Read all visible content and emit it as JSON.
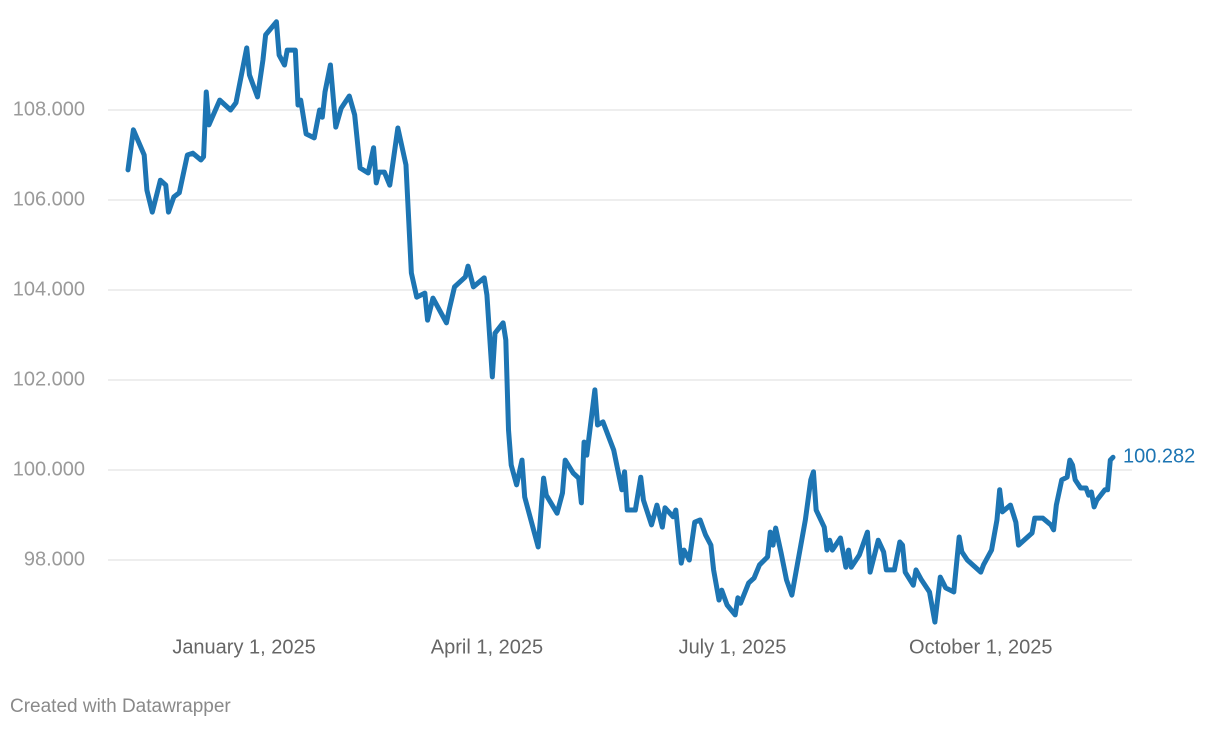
{
  "chart_data": {
    "type": "line",
    "color": "#1d75b3",
    "grid": true,
    "credit": "Created with Datawrapper",
    "x": [
      "2024-11-19",
      "2024-11-21",
      "2024-11-25",
      "2024-11-26",
      "2024-11-28",
      "2024-12-01",
      "2024-12-03",
      "2024-12-04",
      "2024-12-06",
      "2024-12-08",
      "2024-12-11",
      "2024-12-13",
      "2024-12-16",
      "2024-12-17",
      "2024-12-18",
      "2024-12-19",
      "2024-12-23",
      "2024-12-27",
      "2024-12-29",
      "2025-01-02",
      "2025-01-03",
      "2025-01-06",
      "2025-01-08",
      "2025-01-09",
      "2025-01-13",
      "2025-01-14",
      "2025-01-16",
      "2025-01-17",
      "2025-01-20",
      "2025-01-21",
      "2025-01-22",
      "2025-01-24",
      "2025-01-27",
      "2025-01-29",
      "2025-01-30",
      "2025-01-31",
      "2025-02-02",
      "2025-02-04",
      "2025-02-06",
      "2025-02-09",
      "2025-02-11",
      "2025-02-13",
      "2025-02-16",
      "2025-02-18",
      "2025-02-19",
      "2025-02-20",
      "2025-02-22",
      "2025-02-24",
      "2025-02-27",
      "2025-03-02",
      "2025-03-04",
      "2025-03-06",
      "2025-03-09",
      "2025-03-10",
      "2025-03-12",
      "2025-03-17",
      "2025-03-18",
      "2025-03-20",
      "2025-03-24",
      "2025-03-25",
      "2025-03-27",
      "2025-03-31",
      "2025-04-01",
      "2025-04-03",
      "2025-04-04",
      "2025-04-07",
      "2025-04-08",
      "2025-04-09",
      "2025-04-10",
      "2025-04-12",
      "2025-04-14",
      "2025-04-15",
      "2025-04-20",
      "2025-04-22",
      "2025-04-23",
      "2025-04-27",
      "2025-04-29",
      "2025-04-30",
      "2025-05-03",
      "2025-05-05",
      "2025-05-06",
      "2025-05-07",
      "2025-05-08",
      "2025-05-11",
      "2025-05-12",
      "2025-05-14",
      "2025-05-18",
      "2025-05-21",
      "2025-05-22",
      "2025-05-23",
      "2025-05-26",
      "2025-05-28",
      "2025-05-29",
      "2025-06-01",
      "2025-06-03",
      "2025-06-05",
      "2025-06-06",
      "2025-06-09",
      "2025-06-10",
      "2025-06-12",
      "2025-06-13",
      "2025-06-15",
      "2025-06-17",
      "2025-06-19",
      "2025-06-21",
      "2025-06-23",
      "2025-06-24",
      "2025-06-26",
      "2025-06-27",
      "2025-06-29",
      "2025-07-02",
      "2025-07-03",
      "2025-07-04",
      "2025-07-07",
      "2025-07-09",
      "2025-07-11",
      "2025-07-14",
      "2025-07-15",
      "2025-07-16",
      "2025-07-17",
      "2025-07-19",
      "2025-07-21",
      "2025-07-23",
      "2025-07-25",
      "2025-07-28",
      "2025-07-30",
      "2025-07-31",
      "2025-08-01",
      "2025-08-04",
      "2025-08-05",
      "2025-08-06",
      "2025-08-07",
      "2025-08-10",
      "2025-08-12",
      "2025-08-13",
      "2025-08-14",
      "2025-08-17",
      "2025-08-20",
      "2025-08-21",
      "2025-08-24",
      "2025-08-26",
      "2025-08-27",
      "2025-08-30",
      "2025-09-01",
      "2025-09-02",
      "2025-09-03",
      "2025-09-06",
      "2025-09-07",
      "2025-09-09",
      "2025-09-12",
      "2025-09-14",
      "2025-09-16",
      "2025-09-18",
      "2025-09-21",
      "2025-09-23",
      "2025-09-24",
      "2025-09-26",
      "2025-10-01",
      "2025-10-02",
      "2025-10-05",
      "2025-10-07",
      "2025-10-08",
      "2025-10-09",
      "2025-10-12",
      "2025-10-14",
      "2025-10-15",
      "2025-10-20",
      "2025-10-21",
      "2025-10-24",
      "2025-10-27",
      "2025-10-28",
      "2025-10-29",
      "2025-10-31",
      "2025-11-02",
      "2025-11-03",
      "2025-11-04",
      "2025-11-05",
      "2025-11-07",
      "2025-11-09",
      "2025-11-10",
      "2025-11-11",
      "2025-11-12",
      "2025-11-13",
      "2025-11-16",
      "2025-11-17",
      "2025-11-18",
      "2025-11-19"
    ],
    "values": [
      106.67,
      107.56,
      107.0,
      106.22,
      105.73,
      106.44,
      106.33,
      105.73,
      106.07,
      106.16,
      107.0,
      107.04,
      106.89,
      106.96,
      108.4,
      107.67,
      108.22,
      108.0,
      108.16,
      109.38,
      108.78,
      108.29,
      109.11,
      109.67,
      109.96,
      109.22,
      109.0,
      109.33,
      109.33,
      108.11,
      108.22,
      107.47,
      107.38,
      108.0,
      107.84,
      108.4,
      109.0,
      107.62,
      108.04,
      108.31,
      107.89,
      106.71,
      106.6,
      107.16,
      106.38,
      106.62,
      106.62,
      106.33,
      107.6,
      106.78,
      104.38,
      103.84,
      103.93,
      103.33,
      103.82,
      103.27,
      103.56,
      104.07,
      104.29,
      104.53,
      104.07,
      104.27,
      103.89,
      102.07,
      103.04,
      103.27,
      102.89,
      100.89,
      100.11,
      99.67,
      100.22,
      99.4,
      98.29,
      99.82,
      99.44,
      99.04,
      99.49,
      100.22,
      99.93,
      99.82,
      99.27,
      100.62,
      100.33,
      101.78,
      101.0,
      101.07,
      100.44,
      99.56,
      99.96,
      99.11,
      99.11,
      99.84,
      99.33,
      98.78,
      99.22,
      98.73,
      99.16,
      98.96,
      99.11,
      97.93,
      98.22,
      98.0,
      98.84,
      98.89,
      98.56,
      98.33,
      97.78,
      97.11,
      97.33,
      97.0,
      96.78,
      97.16,
      97.04,
      97.49,
      97.6,
      97.89,
      98.07,
      98.62,
      98.33,
      98.71,
      98.16,
      97.56,
      97.22,
      97.89,
      98.89,
      99.78,
      99.96,
      99.11,
      98.73,
      98.22,
      98.44,
      98.22,
      98.49,
      97.84,
      98.22,
      97.84,
      98.11,
      98.62,
      97.73,
      98.44,
      98.18,
      97.78,
      97.78,
      98.4,
      98.33,
      97.73,
      97.44,
      97.78,
      97.56,
      97.29,
      96.62,
      97.62,
      97.38,
      97.29,
      98.51,
      98.18,
      98.0,
      97.73,
      97.89,
      98.22,
      98.89,
      99.56,
      99.07,
      99.22,
      98.84,
      98.33,
      98.6,
      98.93,
      98.93,
      98.78,
      98.67,
      99.22,
      99.78,
      99.84,
      100.22,
      100.11,
      99.78,
      99.6,
      99.6,
      99.44,
      99.51,
      99.18,
      99.33,
      99.56,
      99.56,
      100.22,
      100.282
    ],
    "xlim": [
      "2024-11-19",
      "2025-11-19"
    ],
    "xticks": [
      {
        "value": "2025-01-01",
        "label": "January 1, 2025"
      },
      {
        "value": "2025-04-01",
        "label": "April 1, 2025"
      },
      {
        "value": "2025-07-01",
        "label": "July 1, 2025"
      },
      {
        "value": "2025-10-01",
        "label": "October 1, 2025"
      }
    ],
    "ylim": [
      96,
      110
    ],
    "yticks": [
      {
        "value": 98,
        "label": "98.000"
      },
      {
        "value": 100,
        "label": "100.000"
      },
      {
        "value": 102,
        "label": "102.000"
      },
      {
        "value": 104,
        "label": "104.000"
      },
      {
        "value": 106,
        "label": "106.000"
      },
      {
        "value": 108,
        "label": "108.000"
      }
    ]
  }
}
